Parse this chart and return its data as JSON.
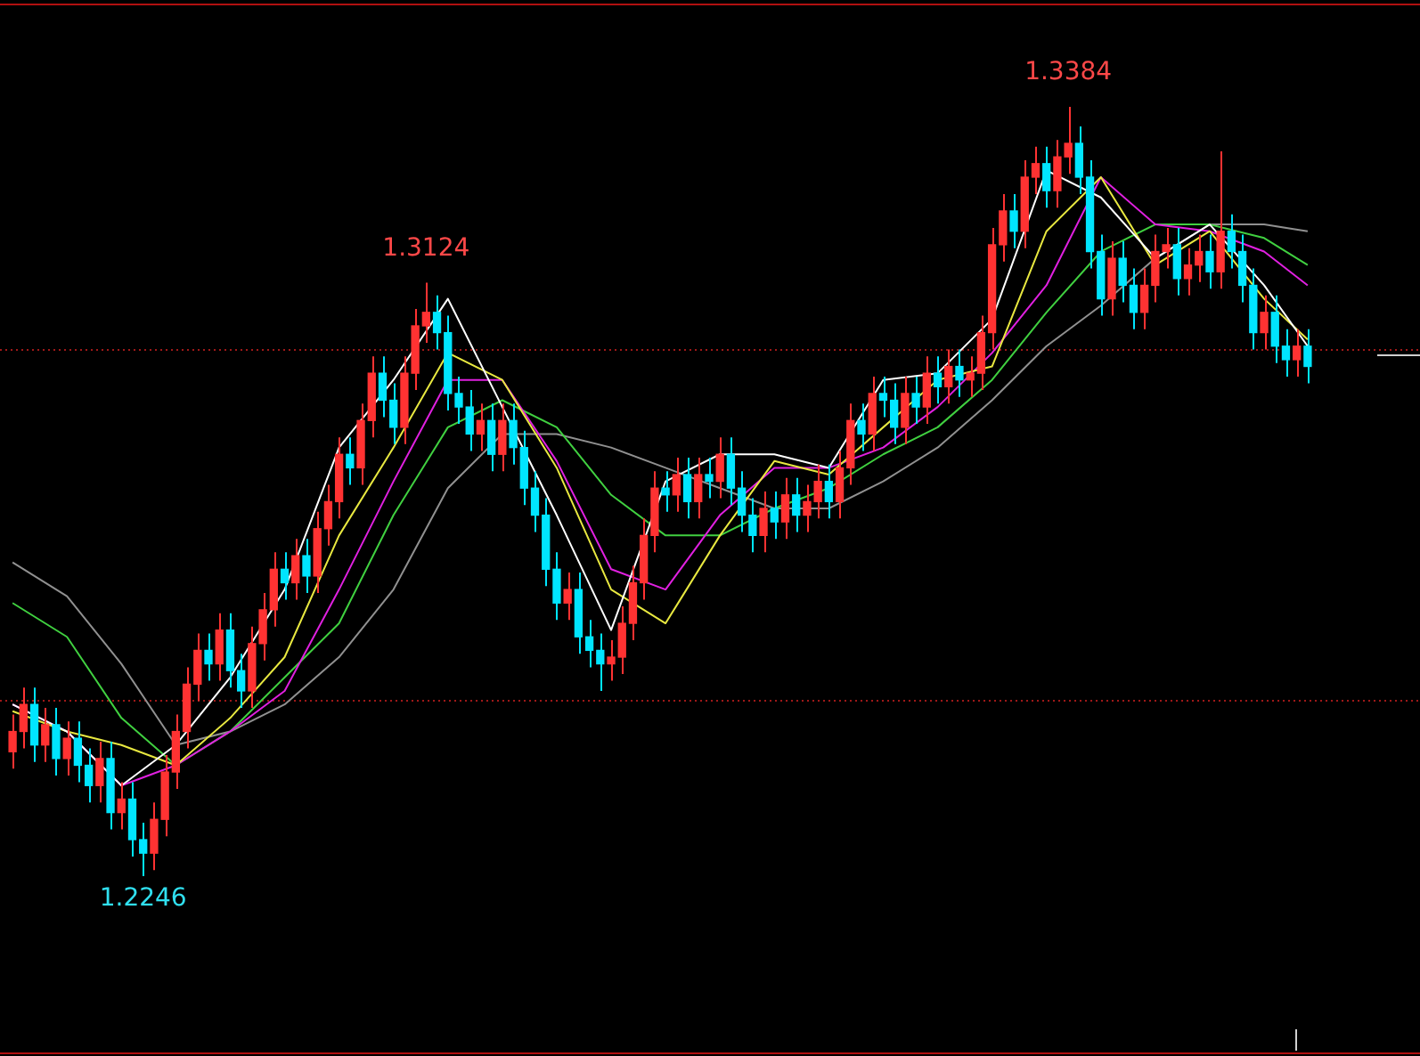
{
  "chart_data": {
    "type": "candlestick",
    "legend": false,
    "tick_labels": false,
    "categories": [
      null,
      null,
      null,
      null,
      null,
      null,
      null,
      null,
      null,
      null,
      null,
      null,
      null,
      null,
      null,
      null,
      null,
      null,
      null,
      null,
      null,
      null,
      null,
      null,
      null,
      null,
      null,
      null,
      null,
      null,
      null,
      null,
      null,
      null,
      null,
      null,
      null,
      null,
      null,
      null,
      null,
      null,
      null,
      null,
      null,
      null,
      null,
      null,
      null,
      null,
      null,
      null,
      null,
      null,
      null,
      null,
      null,
      null,
      null,
      null,
      null,
      null,
      null,
      null,
      null,
      null,
      null,
      null,
      null,
      null,
      null,
      null,
      null,
      null,
      null,
      null,
      null,
      null,
      null,
      null,
      null,
      null,
      null,
      null,
      null,
      null,
      null,
      null,
      null,
      null,
      null,
      null,
      null,
      null,
      null,
      null,
      null,
      null,
      null,
      null,
      null,
      null,
      null,
      null,
      null,
      null,
      null,
      null,
      null,
      null,
      null,
      null,
      null,
      null,
      null,
      null,
      null,
      null,
      null,
      null
    ],
    "ohlc": [
      [
        1.243,
        1.2485,
        1.2405,
        1.246
      ],
      [
        1.246,
        1.2525,
        1.2435,
        1.25
      ],
      [
        1.25,
        1.2525,
        1.2415,
        1.244
      ],
      [
        1.244,
        1.2495,
        1.2415,
        1.247
      ],
      [
        1.247,
        1.2495,
        1.2395,
        1.242
      ],
      [
        1.242,
        1.2475,
        1.2395,
        1.245
      ],
      [
        1.245,
        1.2475,
        1.2385,
        1.241
      ],
      [
        1.241,
        1.2435,
        1.2355,
        1.238
      ],
      [
        1.238,
        1.2445,
        1.2355,
        1.242
      ],
      [
        1.242,
        1.2445,
        1.2315,
        1.234
      ],
      [
        1.234,
        1.2385,
        1.2315,
        1.236
      ],
      [
        1.236,
        1.2385,
        1.2275,
        1.23
      ],
      [
        1.23,
        1.2325,
        1.2246,
        1.228
      ],
      [
        1.228,
        1.2355,
        1.2255,
        1.233
      ],
      [
        1.233,
        1.2425,
        1.2305,
        1.24
      ],
      [
        1.24,
        1.2485,
        1.2375,
        1.246
      ],
      [
        1.246,
        1.2555,
        1.2435,
        1.253
      ],
      [
        1.253,
        1.2605,
        1.2505,
        1.258
      ],
      [
        1.258,
        1.2605,
        1.2535,
        1.256
      ],
      [
        1.256,
        1.2635,
        1.2535,
        1.261
      ],
      [
        1.261,
        1.2635,
        1.2525,
        1.255
      ],
      [
        1.255,
        1.2575,
        1.2495,
        1.252
      ],
      [
        1.252,
        1.2615,
        1.2495,
        1.259
      ],
      [
        1.259,
        1.2665,
        1.2565,
        1.264
      ],
      [
        1.264,
        1.2725,
        1.2615,
        1.27
      ],
      [
        1.27,
        1.2725,
        1.2655,
        1.268
      ],
      [
        1.268,
        1.2745,
        1.2655,
        1.272
      ],
      [
        1.272,
        1.2745,
        1.2665,
        1.269
      ],
      [
        1.269,
        1.2785,
        1.2665,
        1.276
      ],
      [
        1.276,
        1.2825,
        1.2735,
        1.28
      ],
      [
        1.28,
        1.2895,
        1.2775,
        1.287
      ],
      [
        1.287,
        1.2895,
        1.2825,
        1.285
      ],
      [
        1.285,
        1.2945,
        1.2825,
        1.292
      ],
      [
        1.292,
        1.3015,
        1.2895,
        1.299
      ],
      [
        1.299,
        1.3015,
        1.2925,
        1.295
      ],
      [
        1.295,
        1.2975,
        1.2885,
        1.291
      ],
      [
        1.291,
        1.3015,
        1.2885,
        1.299
      ],
      [
        1.299,
        1.3085,
        1.2965,
        1.306
      ],
      [
        1.306,
        1.3124,
        1.3035,
        1.308
      ],
      [
        1.308,
        1.3105,
        1.3025,
        1.305
      ],
      [
        1.305,
        1.3075,
        1.2935,
        1.296
      ],
      [
        1.296,
        1.2985,
        1.2915,
        1.294
      ],
      [
        1.294,
        1.2965,
        1.2875,
        1.29
      ],
      [
        1.29,
        1.2945,
        1.2875,
        1.292
      ],
      [
        1.292,
        1.2945,
        1.2845,
        1.287
      ],
      [
        1.287,
        1.2945,
        1.2845,
        1.292
      ],
      [
        1.292,
        1.2945,
        1.2855,
        1.288
      ],
      [
        1.288,
        1.2905,
        1.2795,
        1.282
      ],
      [
        1.282,
        1.2845,
        1.2755,
        1.278
      ],
      [
        1.278,
        1.2805,
        1.2675,
        1.27
      ],
      [
        1.27,
        1.2725,
        1.2625,
        1.265
      ],
      [
        1.265,
        1.2695,
        1.2625,
        1.267
      ],
      [
        1.267,
        1.2695,
        1.2575,
        1.26
      ],
      [
        1.26,
        1.2625,
        1.2555,
        1.258
      ],
      [
        1.258,
        1.2605,
        1.252,
        1.256
      ],
      [
        1.256,
        1.2595,
        1.2535,
        1.257
      ],
      [
        1.257,
        1.2645,
        1.2545,
        1.262
      ],
      [
        1.262,
        1.2705,
        1.2595,
        1.268
      ],
      [
        1.268,
        1.2775,
        1.2655,
        1.275
      ],
      [
        1.275,
        1.2845,
        1.2725,
        1.282
      ],
      [
        1.282,
        1.2845,
        1.2785,
        1.281
      ],
      [
        1.281,
        1.2865,
        1.2785,
        1.284
      ],
      [
        1.284,
        1.2865,
        1.2775,
        1.28
      ],
      [
        1.28,
        1.2865,
        1.2775,
        1.284
      ],
      [
        1.284,
        1.2865,
        1.2805,
        1.283
      ],
      [
        1.283,
        1.2895,
        1.2805,
        1.287
      ],
      [
        1.287,
        1.2895,
        1.2795,
        1.282
      ],
      [
        1.282,
        1.2845,
        1.2755,
        1.278
      ],
      [
        1.278,
        1.2805,
        1.2725,
        1.275
      ],
      [
        1.275,
        1.2815,
        1.2725,
        1.279
      ],
      [
        1.279,
        1.2815,
        1.2745,
        1.277
      ],
      [
        1.277,
        1.2835,
        1.2745,
        1.281
      ],
      [
        1.281,
        1.2835,
        1.2755,
        1.278
      ],
      [
        1.278,
        1.2825,
        1.2755,
        1.28
      ],
      [
        1.28,
        1.2855,
        1.2775,
        1.283
      ],
      [
        1.283,
        1.2855,
        1.2775,
        1.28
      ],
      [
        1.28,
        1.2875,
        1.2775,
        1.285
      ],
      [
        1.285,
        1.2945,
        1.2825,
        1.292
      ],
      [
        1.292,
        1.2945,
        1.2875,
        1.29
      ],
      [
        1.29,
        1.2985,
        1.2875,
        1.296
      ],
      [
        1.296,
        1.2985,
        1.2925,
        1.295
      ],
      [
        1.295,
        1.2975,
        1.2885,
        1.291
      ],
      [
        1.291,
        1.2985,
        1.2885,
        1.296
      ],
      [
        1.296,
        1.2985,
        1.2915,
        1.294
      ],
      [
        1.294,
        1.3015,
        1.2915,
        1.299
      ],
      [
        1.299,
        1.3015,
        1.2945,
        1.297
      ],
      [
        1.297,
        1.3025,
        1.2945,
        1.3
      ],
      [
        1.3,
        1.3025,
        1.2955,
        1.298
      ],
      [
        1.298,
        1.3015,
        1.2955,
        1.299
      ],
      [
        1.299,
        1.3075,
        1.2965,
        1.305
      ],
      [
        1.305,
        1.3205,
        1.3025,
        1.318
      ],
      [
        1.318,
        1.3255,
        1.3155,
        1.323
      ],
      [
        1.323,
        1.3255,
        1.3175,
        1.32
      ],
      [
        1.32,
        1.3305,
        1.3175,
        1.328
      ],
      [
        1.328,
        1.3325,
        1.3255,
        1.33
      ],
      [
        1.33,
        1.3325,
        1.3235,
        1.326
      ],
      [
        1.326,
        1.3335,
        1.3235,
        1.331
      ],
      [
        1.331,
        1.3384,
        1.3285,
        1.333
      ],
      [
        1.333,
        1.3355,
        1.3255,
        1.328
      ],
      [
        1.328,
        1.3305,
        1.3145,
        1.317
      ],
      [
        1.317,
        1.3195,
        1.3075,
        1.31
      ],
      [
        1.31,
        1.3185,
        1.3075,
        1.316
      ],
      [
        1.316,
        1.3185,
        1.3095,
        1.312
      ],
      [
        1.312,
        1.3145,
        1.3055,
        1.308
      ],
      [
        1.308,
        1.3145,
        1.3055,
        1.312
      ],
      [
        1.312,
        1.3195,
        1.3095,
        1.317
      ],
      [
        1.317,
        1.3205,
        1.3145,
        1.318
      ],
      [
        1.318,
        1.3205,
        1.3105,
        1.313
      ],
      [
        1.313,
        1.3175,
        1.3105,
        1.315
      ],
      [
        1.315,
        1.3195,
        1.3125,
        1.317
      ],
      [
        1.317,
        1.3195,
        1.3115,
        1.314
      ],
      [
        1.314,
        1.3318,
        1.3115,
        1.32
      ],
      [
        1.32,
        1.3225,
        1.3145,
        1.317
      ],
      [
        1.317,
        1.3195,
        1.3095,
        1.312
      ],
      [
        1.312,
        1.3145,
        1.3025,
        1.305
      ],
      [
        1.305,
        1.3105,
        1.3025,
        1.308
      ],
      [
        1.308,
        1.3105,
        1.3005,
        1.303
      ],
      [
        1.303,
        1.3055,
        1.2985,
        1.301
      ],
      [
        1.301,
        1.3055,
        1.2985,
        1.303
      ],
      [
        1.303,
        1.3055,
        1.2975,
        1.3
      ]
    ],
    "colors": [
      "#ff3232",
      "#ff3232",
      "#00e5ff",
      "#ff3232",
      "#00e5ff",
      "#ff3232",
      "#00e5ff",
      "#00e5ff",
      "#ff3232",
      "#00e5ff",
      "#ff3232",
      "#00e5ff",
      "#00e5ff",
      "#ff3232",
      "#ff3232",
      "#ff3232",
      "#ff3232",
      "#ff3232",
      "#00e5ff",
      "#ff3232",
      "#00e5ff",
      "#00e5ff",
      "#ff3232",
      "#ff3232",
      "#ff3232",
      "#00e5ff",
      "#ff3232",
      "#00e5ff",
      "#ff3232",
      "#ff3232",
      "#ff3232",
      "#00e5ff",
      "#ff3232",
      "#ff3232",
      "#00e5ff",
      "#00e5ff",
      "#ff3232",
      "#ff3232",
      "#ff3232",
      "#00e5ff",
      "#00e5ff",
      "#00e5ff",
      "#00e5ff",
      "#ff3232",
      "#00e5ff",
      "#ff3232",
      "#00e5ff",
      "#00e5ff",
      "#00e5ff",
      "#00e5ff",
      "#00e5ff",
      "#ff3232",
      "#00e5ff",
      "#00e5ff",
      "#00e5ff",
      "#ff3232",
      "#ff3232",
      "#ff3232",
      "#ff3232",
      "#ff3232",
      "#00e5ff",
      "#ff3232",
      "#00e5ff",
      "#ff3232",
      "#00e5ff",
      "#ff3232",
      "#00e5ff",
      "#00e5ff",
      "#00e5ff",
      "#ff3232",
      "#00e5ff",
      "#ff3232",
      "#00e5ff",
      "#ff3232",
      "#ff3232",
      "#00e5ff",
      "#ff3232",
      "#ff3232",
      "#00e5ff",
      "#ff3232",
      "#00e5ff",
      "#00e5ff",
      "#ff3232",
      "#00e5ff",
      "#ff3232",
      "#00e5ff",
      "#ff3232",
      "#00e5ff",
      "#ff3232",
      "#ff3232",
      "#ff3232",
      "#ff3232",
      "#00e5ff",
      "#ff3232",
      "#ff3232",
      "#00e5ff",
      "#ff3232",
      "#ff3232",
      "#00e5ff",
      "#00e5ff",
      "#00e5ff",
      "#ff3232",
      "#00e5ff",
      "#00e5ff",
      "#ff3232",
      "#ff3232",
      "#ff3232",
      "#00e5ff",
      "#ff3232",
      "#ff3232",
      "#00e5ff",
      "#ff3232",
      "#00e5ff",
      "#00e5ff",
      "#00e5ff",
      "#ff3232",
      "#00e5ff",
      "#00e5ff",
      "#ff3232",
      "#00e5ff"
    ],
    "series": [
      {
        "type": "line",
        "color": "#ffffff",
        "values": [
          1.25,
          null,
          null,
          null,
          null,
          1.246,
          null,
          null,
          null,
          null,
          1.238,
          null,
          null,
          null,
          null,
          1.244,
          null,
          null,
          null,
          null,
          1.254,
          null,
          null,
          null,
          null,
          1.267,
          null,
          null,
          null,
          null,
          1.288,
          null,
          null,
          null,
          null,
          1.298,
          null,
          null,
          null,
          null,
          1.31,
          null,
          null,
          null,
          null,
          1.294,
          null,
          null,
          null,
          null,
          1.278,
          null,
          null,
          null,
          null,
          1.261,
          null,
          null,
          null,
          null,
          1.283,
          null,
          null,
          null,
          null,
          1.287,
          null,
          null,
          null,
          null,
          1.287,
          null,
          null,
          null,
          null,
          1.285,
          null,
          null,
          null,
          null,
          1.298,
          null,
          null,
          null,
          null,
          1.299,
          null,
          null,
          null,
          null,
          1.307,
          null,
          null,
          null,
          null,
          1.329,
          null,
          null,
          null,
          null,
          1.325,
          null,
          null,
          null,
          null,
          1.316,
          null,
          null,
          null,
          null,
          1.321,
          null,
          null,
          null,
          null,
          1.312,
          null,
          null,
          null,
          1.303
        ]
      },
      {
        "type": "line",
        "color": "#e8e840",
        "values": [
          1.249,
          null,
          null,
          null,
          null,
          1.246,
          null,
          null,
          null,
          null,
          1.244,
          null,
          null,
          null,
          null,
          1.241,
          null,
          null,
          null,
          null,
          1.248,
          null,
          null,
          null,
          null,
          1.257,
          null,
          null,
          null,
          null,
          1.275,
          null,
          null,
          null,
          null,
          1.288,
          null,
          null,
          null,
          null,
          1.302,
          null,
          null,
          null,
          null,
          1.298,
          null,
          null,
          null,
          null,
          1.285,
          null,
          null,
          null,
          null,
          1.267,
          null,
          null,
          null,
          null,
          1.262,
          null,
          null,
          null,
          null,
          1.275,
          null,
          null,
          null,
          null,
          1.286,
          null,
          null,
          null,
          null,
          1.284,
          null,
          null,
          null,
          null,
          1.291,
          null,
          null,
          null,
          null,
          1.298,
          null,
          null,
          null,
          null,
          1.3,
          null,
          null,
          null,
          null,
          1.32,
          null,
          null,
          null,
          null,
          1.328,
          null,
          null,
          null,
          null,
          1.315,
          null,
          null,
          null,
          null,
          1.32,
          null,
          null,
          null,
          null,
          1.31,
          null,
          null,
          null,
          1.304
        ]
      },
      {
        "type": "line",
        "color": "#e020e0",
        "values": [
          1.25,
          null,
          null,
          null,
          null,
          1.246,
          null,
          null,
          null,
          null,
          1.238,
          null,
          null,
          null,
          null,
          1.241,
          null,
          null,
          null,
          null,
          1.246,
          null,
          null,
          null,
          null,
          1.252,
          null,
          null,
          null,
          null,
          1.267,
          null,
          null,
          null,
          null,
          1.283,
          null,
          null,
          null,
          null,
          1.298,
          null,
          null,
          null,
          null,
          1.298,
          null,
          null,
          null,
          null,
          1.286,
          null,
          null,
          null,
          null,
          1.27,
          null,
          null,
          null,
          null,
          1.267,
          null,
          null,
          null,
          null,
          1.278,
          null,
          null,
          null,
          null,
          1.285,
          null,
          null,
          null,
          null,
          1.285,
          null,
          null,
          null,
          null,
          1.288,
          null,
          null,
          null,
          null,
          1.294,
          null,
          null,
          null,
          null,
          1.302,
          null,
          null,
          null,
          null,
          1.312,
          null,
          null,
          null,
          null,
          1.328,
          null,
          null,
          null,
          null,
          1.321,
          null,
          null,
          null,
          null,
          1.32,
          null,
          null,
          null,
          null,
          1.317,
          null,
          null,
          null,
          1.312
        ]
      },
      {
        "type": "line",
        "color": "#40d040",
        "values": [
          1.265,
          null,
          null,
          null,
          null,
          1.26,
          null,
          null,
          null,
          null,
          1.248,
          null,
          null,
          null,
          null,
          1.241,
          null,
          null,
          null,
          null,
          1.246,
          null,
          null,
          null,
          null,
          1.254,
          null,
          null,
          null,
          null,
          1.262,
          null,
          null,
          null,
          null,
          1.278,
          null,
          null,
          null,
          null,
          1.291,
          null,
          null,
          null,
          null,
          1.295,
          null,
          null,
          null,
          null,
          1.291,
          null,
          null,
          null,
          null,
          1.281,
          null,
          null,
          null,
          null,
          1.275,
          null,
          null,
          null,
          null,
          1.275,
          null,
          null,
          null,
          null,
          1.279,
          null,
          null,
          null,
          null,
          1.282,
          null,
          null,
          null,
          null,
          1.287,
          null,
          null,
          null,
          null,
          1.291,
          null,
          null,
          null,
          null,
          1.298,
          null,
          null,
          null,
          null,
          1.308,
          null,
          null,
          null,
          null,
          1.317,
          null,
          null,
          null,
          null,
          1.321,
          null,
          null,
          null,
          null,
          1.321,
          null,
          null,
          null,
          null,
          1.319,
          null,
          null,
          null,
          1.315
        ]
      },
      {
        "type": "line",
        "color": "#909090",
        "values": [
          1.271,
          null,
          null,
          null,
          null,
          1.266,
          null,
          null,
          null,
          null,
          1.256,
          null,
          null,
          null,
          null,
          1.244,
          null,
          null,
          null,
          null,
          1.246,
          null,
          null,
          null,
          null,
          1.25,
          null,
          null,
          null,
          null,
          1.257,
          null,
          null,
          null,
          null,
          1.267,
          null,
          null,
          null,
          null,
          1.282,
          null,
          null,
          null,
          null,
          1.29,
          null,
          null,
          null,
          null,
          1.29,
          null,
          null,
          null,
          null,
          1.288,
          null,
          null,
          null,
          null,
          1.285,
          null,
          null,
          null,
          null,
          1.282,
          null,
          null,
          null,
          null,
          1.279,
          null,
          null,
          null,
          null,
          1.279,
          null,
          null,
          null,
          null,
          1.283,
          null,
          null,
          null,
          null,
          1.288,
          null,
          null,
          null,
          null,
          1.295,
          null,
          null,
          null,
          null,
          1.303,
          null,
          null,
          null,
          null,
          1.309,
          null,
          null,
          null,
          null,
          1.316,
          null,
          null,
          null,
          null,
          1.321,
          null,
          null,
          null,
          null,
          1.321,
          null,
          null,
          null,
          1.32
        ]
      }
    ],
    "ref_lines": [
      {
        "axis": "y",
        "value": 1.3026,
        "color": "#a01818",
        "line_style": "dotted"
      },
      {
        "axis": "y",
        "value": 1.2508,
        "color": "#a01818",
        "line_style": "dotted"
      }
    ],
    "annotations": [
      {
        "text": "1.3384",
        "y": 1.3384
      },
      {
        "text": "1.3124",
        "y": 1.3124
      },
      {
        "text": "1.2246",
        "y": 1.2246
      }
    ]
  }
}
